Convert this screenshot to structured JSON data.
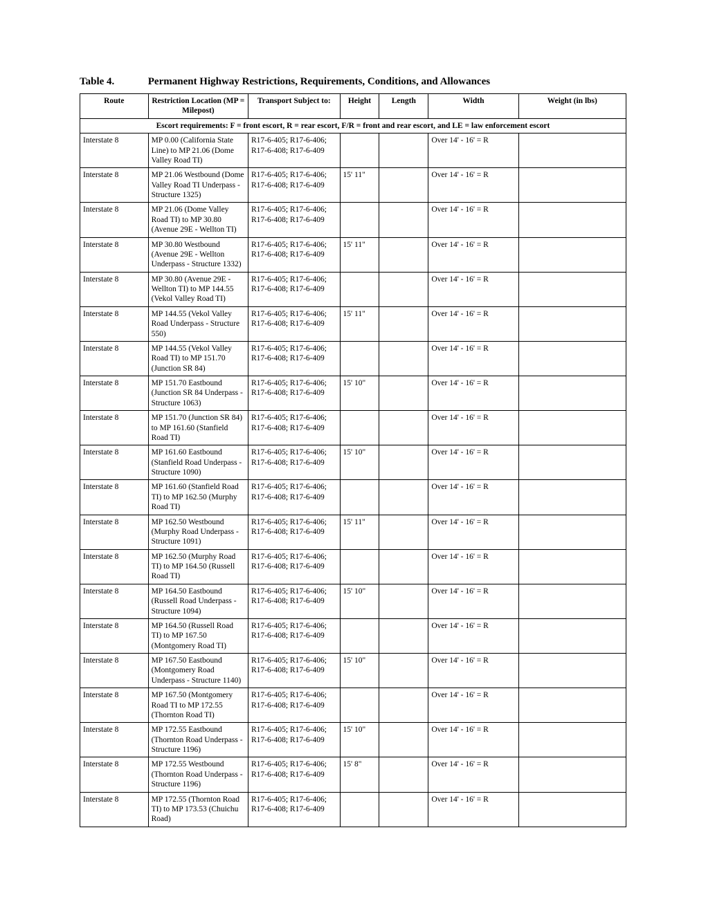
{
  "title": {
    "label": "Table 4.",
    "text": "Permanent Highway Restrictions, Requirements, Conditions, and Allowances"
  },
  "headers": {
    "route": "Route",
    "location": "Restriction Location (MP = Milepost)",
    "transport": "Transport Subject to:",
    "height": "Height",
    "length": "Length",
    "width": "Width",
    "weight": "Weight (in lbs)"
  },
  "escort_note": "Escort requirements: F = front escort, R = rear escort, F/R = front and rear escort, and LE = law enforcement escort",
  "transport_std": "R17-6-405; R17-6-406; R17-6-408; R17-6-409",
  "width_std": "Over 14' - 16' = R",
  "rows": [
    {
      "route": "Interstate 8",
      "location": "MP 0.00 (California State Line) to MP 21.06 (Dome Valley Road TI)",
      "height": "",
      "length": "",
      "width_key": "width_std",
      "weight": ""
    },
    {
      "route": "Interstate 8",
      "location": "MP 21.06 Westbound (Dome Valley Road TI Underpass - Structure 1325)",
      "height": "15' 11\"",
      "length": "",
      "width_key": "width_std",
      "weight": ""
    },
    {
      "route": "Interstate 8",
      "location": "MP 21.06 (Dome Valley Road TI) to MP 30.80 (Avenue 29E - Wellton TI)",
      "height": "",
      "length": "",
      "width_key": "width_std",
      "weight": ""
    },
    {
      "route": "Interstate 8",
      "location": "MP 30.80 Westbound (Avenue 29E - Wellton Underpass - Structure 1332)",
      "height": "15' 11\"",
      "length": "",
      "width_key": "width_std",
      "weight": ""
    },
    {
      "route": "Interstate 8",
      "location": "MP 30.80 (Avenue 29E - Wellton TI) to MP 144.55 (Vekol Valley Road TI)",
      "height": "",
      "length": "",
      "width_key": "width_std",
      "weight": ""
    },
    {
      "route": "Interstate 8",
      "location": "MP 144.55 (Vekol Valley Road Underpass - Structure 550)",
      "height": "15' 11\"",
      "length": "",
      "width_key": "width_std",
      "weight": ""
    },
    {
      "route": "Interstate 8",
      "location": "MP 144.55 (Vekol Valley Road TI) to MP 151.70 (Junction SR 84)",
      "height": "",
      "length": "",
      "width_key": "width_std",
      "weight": ""
    },
    {
      "route": "Interstate 8",
      "location": "MP 151.70 Eastbound (Junction SR 84 Underpass - Structure 1063)",
      "height": "15' 10\"",
      "length": "",
      "width_key": "width_std",
      "weight": ""
    },
    {
      "route": "Interstate 8",
      "location": "MP 151.70 (Junction SR 84) to MP 161.60 (Stanfield Road TI)",
      "height": "",
      "length": "",
      "width_key": "width_std",
      "weight": ""
    },
    {
      "route": "Interstate 8",
      "location": "MP 161.60 Eastbound (Stanfield Road Underpass - Structure 1090)",
      "height": "15' 10\"",
      "length": "",
      "width_key": "width_std",
      "weight": ""
    },
    {
      "route": "Interstate 8",
      "location": "MP 161.60 (Stanfield Road TI) to MP 162.50 (Murphy Road TI)",
      "height": "",
      "length": "",
      "width_key": "width_std",
      "weight": ""
    },
    {
      "route": "Interstate 8",
      "location": "MP 162.50 Westbound (Murphy Road Underpass - Structure 1091)",
      "height": "15' 11\"",
      "length": "",
      "width_key": "width_std",
      "weight": ""
    },
    {
      "route": "Interstate 8",
      "location": "MP 162.50 (Murphy Road TI) to MP 164.50 (Russell Road TI)",
      "height": "",
      "length": "",
      "width_key": "width_std",
      "weight": ""
    },
    {
      "route": "Interstate 8",
      "location": "MP 164.50 Eastbound (Russell Road Underpass - Structure 1094)",
      "height": "15' 10\"",
      "length": "",
      "width_key": "width_std",
      "weight": ""
    },
    {
      "route": "Interstate 8",
      "location": "MP 164.50 (Russell Road TI) to MP 167.50 (Montgomery Road TI)",
      "height": "",
      "length": "",
      "width_key": "width_std",
      "weight": ""
    },
    {
      "route": "Interstate 8",
      "location": "MP 167.50 Eastbound (Montgomery Road Underpass - Structure 1140)",
      "height": "15' 10\"",
      "length": "",
      "width_key": "width_std",
      "weight": ""
    },
    {
      "route": "Interstate 8",
      "location": "MP 167.50 (Montgomery Road TI to MP 172.55 (Thornton Road TI)",
      "height": "",
      "length": "",
      "width_key": "width_std",
      "weight": ""
    },
    {
      "route": "Interstate 8",
      "location": "MP 172.55 Eastbound (Thornton Road Underpass - Structure 1196)",
      "height": "15' 10\"",
      "length": "",
      "width_key": "width_std",
      "weight": ""
    },
    {
      "route": "Interstate 8",
      "location": "MP 172.55 Westbound (Thornton Road Underpass - Structure 1196)",
      "height": "15' 8\"",
      "length": "",
      "width_key": "width_std",
      "weight": ""
    },
    {
      "route": "Interstate 8",
      "location": "MP 172.55 (Thornton Road TI) to MP 173.53 (Chuichu Road)",
      "height": "",
      "length": "",
      "width_key": "width_std",
      "weight": ""
    }
  ]
}
